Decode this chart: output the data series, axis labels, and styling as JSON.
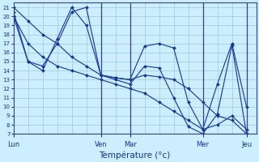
{
  "title": "Température (°c)",
  "background_color": "#cceeff",
  "grid_color": "#99cccc",
  "line_color": "#1133aa",
  "separator_color": "#334488",
  "days_labels": [
    "Lun",
    "Ven",
    "Mar",
    "Mer",
    "Jeu"
  ],
  "days_x": [
    0,
    36,
    48,
    78,
    96
  ],
  "xlim": [
    0,
    100
  ],
  "ylim": [
    7,
    21.5
  ],
  "yticks": [
    7,
    8,
    9,
    10,
    11,
    12,
    13,
    14,
    15,
    16,
    17,
    18,
    19,
    20,
    21
  ],
  "series": [
    {
      "x": [
        0,
        6,
        12,
        18,
        24,
        30,
        36,
        42,
        48,
        54,
        60,
        66,
        72,
        78,
        84,
        90,
        96
      ],
      "y": [
        21,
        19.5,
        18,
        17,
        15.5,
        14.5,
        13.5,
        13.2,
        13.0,
        13.5,
        13.3,
        13.0,
        12.0,
        10.5,
        9.0,
        8.5,
        7.0
      ]
    },
    {
      "x": [
        0,
        6,
        12,
        18,
        24,
        30,
        36,
        42,
        48,
        54,
        60,
        66,
        72,
        78,
        84,
        90,
        96
      ],
      "y": [
        20.0,
        17.0,
        15.5,
        14.5,
        14.0,
        13.5,
        13.0,
        12.5,
        12.0,
        11.5,
        10.5,
        9.5,
        8.5,
        7.5,
        8.0,
        9.0,
        7.5
      ]
    },
    {
      "x": [
        0,
        6,
        12,
        18,
        24,
        30,
        36,
        42,
        48,
        54,
        60,
        66,
        72,
        78,
        84,
        90,
        96
      ],
      "y": [
        20.0,
        15.0,
        14.5,
        17.0,
        20.5,
        21.0,
        13.5,
        13.2,
        13.0,
        16.7,
        17.0,
        16.5,
        10.5,
        7.5,
        12.5,
        17.0,
        10.0
      ]
    },
    {
      "x": [
        0,
        6,
        12,
        18,
        24,
        30,
        36,
        42,
        48,
        54,
        60,
        66,
        72,
        78,
        84,
        90,
        96
      ],
      "y": [
        20.5,
        15.0,
        14.0,
        17.5,
        21.0,
        19.0,
        13.5,
        13.0,
        12.5,
        14.5,
        14.3,
        11.0,
        7.8,
        7.0,
        9.2,
        16.8,
        7.0
      ]
    }
  ]
}
